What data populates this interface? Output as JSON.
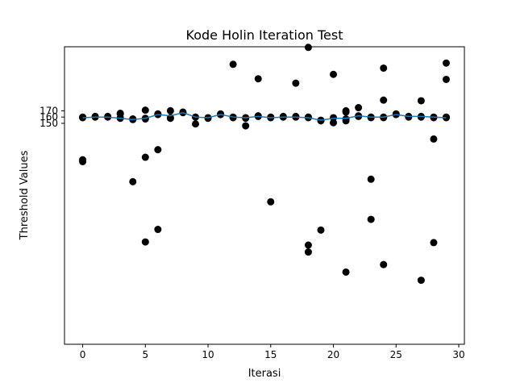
{
  "chart_data": {
    "type": "scatter",
    "title": "Kode Holin Iteration Test",
    "xlabel": "Iterasi",
    "ylabel": "Threshold Values",
    "xlim": [
      -1.45,
      30.45
    ],
    "ylim": [
      -202,
      272
    ],
    "grid": false,
    "legend": "none",
    "xticks": [
      0,
      5,
      10,
      15,
      20,
      25,
      30
    ],
    "yticks": [
      150,
      160,
      170
    ],
    "colors": {
      "points": "#000000",
      "line": "#1f77b4",
      "axes": "#000000",
      "background": "#ffffff"
    },
    "series": [
      {
        "type": "scatter",
        "points": [
          [
            0,
            160
          ],
          [
            0,
            159
          ],
          [
            0,
            89
          ],
          [
            0,
            92
          ],
          [
            1,
            161
          ],
          [
            1,
            160
          ],
          [
            2,
            161
          ],
          [
            2,
            160
          ],
          [
            3,
            166
          ],
          [
            3,
            165
          ],
          [
            3,
            159
          ],
          [
            3,
            158
          ],
          [
            4,
            157
          ],
          [
            4,
            156
          ],
          [
            4,
            57
          ],
          [
            5,
            171
          ],
          [
            5,
            158
          ],
          [
            5,
            157
          ],
          [
            5,
            96
          ],
          [
            5,
            -39
          ],
          [
            6,
            164
          ],
          [
            6,
            165
          ],
          [
            6,
            108
          ],
          [
            6,
            -19
          ],
          [
            7,
            170
          ],
          [
            7,
            159
          ],
          [
            7,
            158
          ],
          [
            8,
            168
          ],
          [
            8,
            167
          ],
          [
            9,
            160
          ],
          [
            9,
            149
          ],
          [
            10,
            159
          ],
          [
            10,
            158
          ],
          [
            11,
            165
          ],
          [
            11,
            164
          ],
          [
            12,
            160
          ],
          [
            12,
            159
          ],
          [
            12,
            244
          ],
          [
            13,
            159
          ],
          [
            13,
            158
          ],
          [
            13,
            146
          ],
          [
            14,
            161
          ],
          [
            14,
            162
          ],
          [
            14,
            221
          ],
          [
            15,
            159
          ],
          [
            15,
            160
          ],
          [
            15,
            25
          ],
          [
            16,
            160
          ],
          [
            16,
            161
          ],
          [
            17,
            161
          ],
          [
            17,
            160
          ],
          [
            17,
            214
          ],
          [
            18,
            160
          ],
          [
            18,
            159
          ],
          [
            18,
            271
          ],
          [
            18,
            -44
          ],
          [
            18,
            -55
          ],
          [
            19,
            154
          ],
          [
            19,
            155
          ],
          [
            19,
            -20
          ],
          [
            20,
            159
          ],
          [
            20,
            151
          ],
          [
            20,
            228
          ],
          [
            21,
            170
          ],
          [
            21,
            168
          ],
          [
            21,
            157
          ],
          [
            21,
            154
          ],
          [
            21,
            -87
          ],
          [
            22,
            175
          ],
          [
            22,
            162
          ],
          [
            22,
            161
          ],
          [
            23,
            160
          ],
          [
            23,
            159
          ],
          [
            23,
            61
          ],
          [
            23,
            -3
          ],
          [
            24,
            160
          ],
          [
            24,
            159
          ],
          [
            24,
            187
          ],
          [
            24,
            238
          ],
          [
            24,
            -75
          ],
          [
            25,
            164
          ],
          [
            25,
            165
          ],
          [
            26,
            161
          ],
          [
            26,
            160
          ],
          [
            27,
            161
          ],
          [
            27,
            160
          ],
          [
            27,
            186
          ],
          [
            27,
            -100
          ],
          [
            28,
            160
          ],
          [
            28,
            159
          ],
          [
            28,
            125
          ],
          [
            28,
            -40
          ],
          [
            29,
            160
          ],
          [
            29,
            159
          ],
          [
            29,
            246
          ],
          [
            29,
            220
          ]
        ]
      },
      {
        "type": "line",
        "x": [
          0,
          1,
          2,
          3,
          4,
          5,
          6,
          7,
          8,
          9,
          10,
          11,
          12,
          13,
          14,
          15,
          16,
          17,
          18,
          19,
          20,
          21,
          22,
          23,
          24,
          25,
          26,
          27,
          28,
          29
        ],
        "values": [
          159,
          160,
          160,
          158,
          156,
          158,
          164,
          162,
          167,
          160,
          159,
          164,
          160,
          159,
          161,
          159,
          160,
          160,
          159,
          155,
          158,
          158,
          162,
          160,
          160,
          164,
          161,
          161,
          160,
          159
        ]
      }
    ]
  }
}
